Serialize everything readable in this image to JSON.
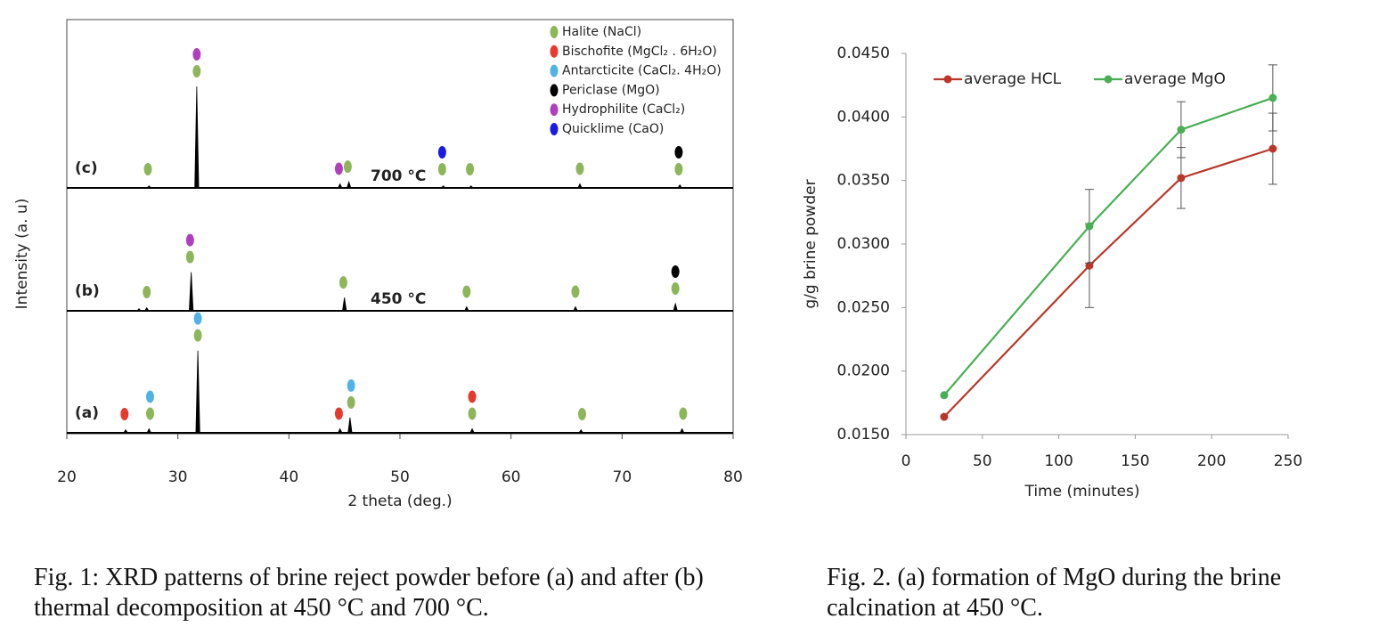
{
  "chart_data": [
    {
      "type": "spectrum",
      "xlabel": "2  theta (deg.)",
      "ylabel": "Intensity (a. u)",
      "xlim": [
        20,
        80
      ],
      "xticks": [
        20,
        30,
        40,
        50,
        60,
        70,
        80
      ],
      "caption": "Fig. 1: XRD patterns of brine reject powder before (a) and after (b) thermal decomposition at 450 °C and 700 °C.",
      "series": [
        {
          "name": "(a)",
          "color": "#000000",
          "x": [
            25.3,
            27.4,
            31.8,
            44.6,
            45.5,
            56.5,
            66.3,
            75.4
          ],
          "values": [
            3,
            4,
            81,
            4,
            15,
            4,
            3,
            4
          ]
        },
        {
          "name": "(b)",
          "annotation": "450 °C",
          "color": "#000000",
          "x": [
            26.5,
            27.2,
            31.2,
            45.0,
            56.0,
            65.8,
            74.8
          ],
          "values": [
            2,
            3,
            38,
            13,
            4,
            4,
            7
          ]
        },
        {
          "name": "(c)",
          "annotation": "700 °C",
          "color": "#000000",
          "x": [
            27.4,
            31.7,
            44.6,
            45.4,
            53.9,
            56.4,
            66.2,
            75.2
          ],
          "values": [
            2,
            100,
            4,
            6,
            2,
            2,
            4,
            3
          ]
        }
      ],
      "phases": [
        {
          "name": "Halite (NaCl)",
          "color": "#8db55a",
          "positions": [
            [
              27.5,
              31.8,
              45.6,
              56.5,
              66.4,
              75.5
            ],
            [
              27.2,
              31.1,
              44.9,
              56.0,
              65.8,
              74.8
            ],
            [
              27.3,
              31.7,
              45.3,
              53.8,
              56.3,
              66.2,
              75.1
            ]
          ]
        },
        {
          "name": "Bischofite (MgCl₂ . 6H₂O)",
          "color": "#e8392c",
          "positions": [
            [
              25.2,
              44.5,
              56.5
            ],
            [],
            []
          ]
        },
        {
          "name": "Antarcticite (CaCl₂. 4H₂O)",
          "color": "#4fb3e8",
          "positions": [
            [
              27.5,
              31.8,
              45.6
            ],
            [],
            []
          ]
        },
        {
          "name": "Periclase (MgO)",
          "color": "#000000",
          "positions": [
            [],
            [
              74.8
            ],
            [
              75.1
            ]
          ]
        },
        {
          "name": "Hydrophilite (CaCl₂)",
          "color": "#b03fc0",
          "positions": [
            [],
            [
              31.1
            ],
            [
              31.7,
              44.5
            ]
          ]
        },
        {
          "name": "Quicklime (CaO)",
          "color": "#1a1ae6",
          "positions": [
            [],
            [],
            [
              53.8
            ]
          ]
        }
      ]
    },
    {
      "type": "line",
      "xlabel": "Time (minutes)",
      "ylabel": "g/g brine powder",
      "xlim": [
        0,
        250
      ],
      "xticks": [
        0,
        50,
        100,
        150,
        200,
        250
      ],
      "ylim": [
        0.015,
        0.045
      ],
      "yticks": [
        {
          "value": 0.015,
          "label": "0.0150"
        },
        {
          "value": 0.02,
          "label": "0.0200"
        },
        {
          "value": 0.025,
          "label": "0.0250"
        },
        {
          "value": 0.03,
          "label": "0.0300"
        },
        {
          "value": 0.035,
          "label": "0.0350"
        },
        {
          "value": 0.04,
          "label": "0.0400"
        },
        {
          "value": 0.045,
          "label": "0.0450"
        }
      ],
      "x": [
        25,
        120,
        180,
        240
      ],
      "caption": "Fig. 2. (a) formation of MgO during the brine calcination at 450 °C.",
      "series": [
        {
          "name": "average HCL",
          "color": "#b8372a",
          "values": [
            0.0164,
            0.0283,
            0.0352,
            0.0375
          ],
          "errors": [
            null,
            0.0033,
            0.0024,
            0.0028
          ]
        },
        {
          "name": "average MgO",
          "color": "#4aae55",
          "values": [
            0.0181,
            0.0314,
            0.039,
            0.0415
          ],
          "errors": [
            null,
            0.0029,
            0.0022,
            0.0026
          ]
        }
      ]
    }
  ]
}
